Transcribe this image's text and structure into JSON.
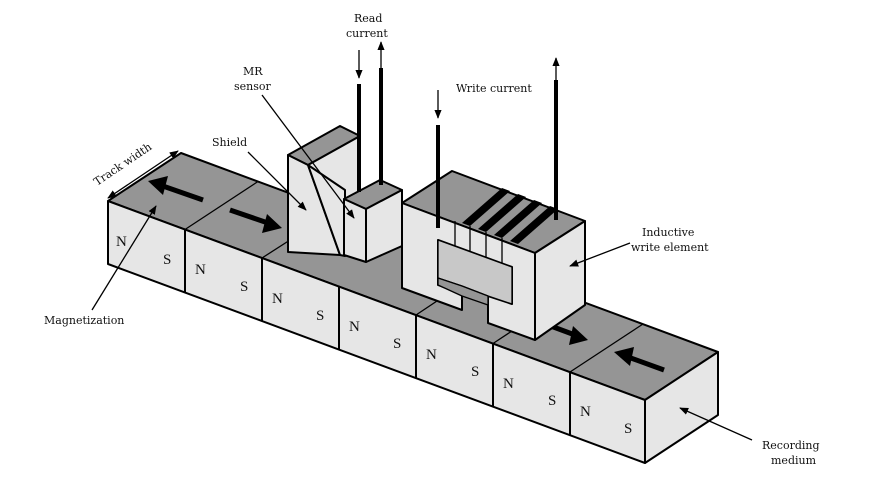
{
  "labels": {
    "read_current_line1": "Read",
    "read_current_line2": "current",
    "mr_sensor_line1": "MR",
    "mr_sensor_line2": "sensor",
    "shield": "Shield",
    "write_current": "Write current",
    "track_width": "Track width",
    "inductive_line1": "Inductive",
    "inductive_line2": "write element",
    "magnetization": "Magnetization",
    "recording_line1": "Recording",
    "recording_line2": "medium"
  },
  "poles": {
    "north": "N",
    "south": "S"
  },
  "colors": {
    "face_light": "#e6e6e6",
    "face_dark": "#959595",
    "face_mid": "#c8c8c8",
    "stroke": "#000000"
  }
}
